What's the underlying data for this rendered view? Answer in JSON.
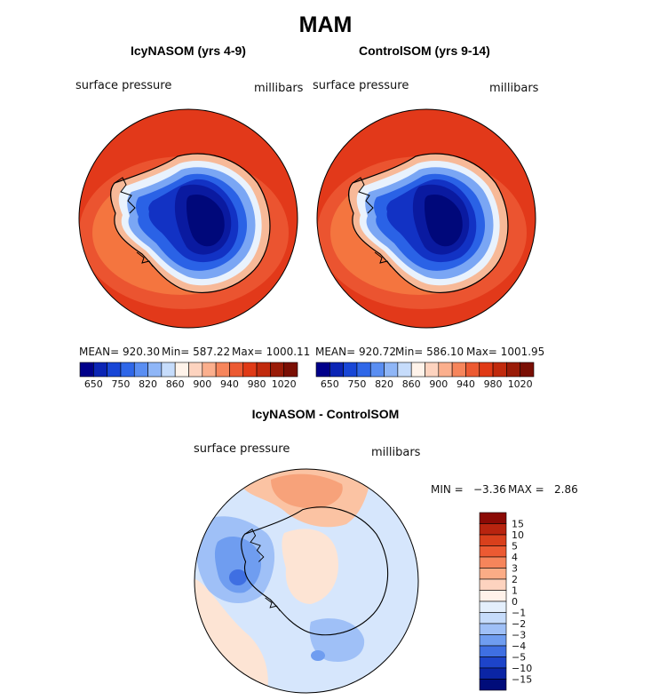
{
  "figure": {
    "season_title": "MAM",
    "panels": [
      {
        "title": "IcyNASOM (yrs 4-9)",
        "variable": "surface pressure",
        "units": "millibars",
        "mean_text": "MEAN= 920.30",
        "min_text": "Min= 587.22",
        "max_text": "Max= 1000.11"
      },
      {
        "title": "ControlSOM (yrs 9-14)",
        "variable": "surface pressure",
        "units": "millibars",
        "mean_text": "MEAN= 920.72",
        "min_text": "Min= 586.10",
        "max_text": "Max= 1001.95"
      }
    ],
    "difference": {
      "title": "IcyNASOM - ControlSOM",
      "variable": "surface pressure",
      "units": "millibars",
      "min_label": "MIN =",
      "min_value": "−3.36",
      "max_label": "MAX =",
      "max_value": "2.86"
    }
  },
  "chart_data": [
    {
      "type": "heatmap",
      "projection": "south-polar-stereographic",
      "title": "IcyNASOM (yrs 4-9)",
      "variable": "surface pressure",
      "units": "millibars",
      "mean": 920.3,
      "min": 587.22,
      "max": 1000.11,
      "colorbar_ticks": [
        "650",
        "750",
        "820",
        "860",
        "900",
        "940",
        "980",
        "1020"
      ],
      "colorbar_colors": [
        "#00008a",
        "#0b25b5",
        "#1846d6",
        "#2f67e8",
        "#5a8ef2",
        "#8fb6f7",
        "#c6dcfb",
        "#fff3ea",
        "#fdd3bf",
        "#fbaf8d",
        "#f6855b",
        "#ec5a32",
        "#e03a16",
        "#c12a0d",
        "#9a1c08",
        "#7a0f04"
      ]
    },
    {
      "type": "heatmap",
      "projection": "south-polar-stereographic",
      "title": "ControlSOM (yrs 9-14)",
      "variable": "surface pressure",
      "units": "millibars",
      "mean": 920.72,
      "min": 586.1,
      "max": 1001.95,
      "colorbar_ticks": [
        "650",
        "750",
        "820",
        "860",
        "900",
        "940",
        "980",
        "1020"
      ],
      "colorbar_colors": [
        "#00008a",
        "#0b25b5",
        "#1846d6",
        "#2f67e8",
        "#5a8ef2",
        "#8fb6f7",
        "#c6dcfb",
        "#fff3ea",
        "#fdd3bf",
        "#fbaf8d",
        "#f6855b",
        "#ec5a32",
        "#e03a16",
        "#c12a0d",
        "#9a1c08",
        "#7a0f04"
      ]
    },
    {
      "type": "heatmap",
      "projection": "south-polar-stereographic",
      "title": "IcyNASOM - ControlSOM",
      "variable": "surface pressure",
      "units": "millibars",
      "min": -3.36,
      "max": 2.86,
      "colorbar_ticks": [
        "15",
        "10",
        "5",
        "4",
        "3",
        "2",
        "1",
        "0",
        "−1",
        "−2",
        "−3",
        "−4",
        "−5",
        "−10",
        "−15"
      ],
      "colorbar_colors": [
        "#8b0a05",
        "#b8240f",
        "#d9401c",
        "#ec5a32",
        "#f6855b",
        "#fbac86",
        "#fdd3bf",
        "#fff2ea",
        "#e4effc",
        "#c6dcfb",
        "#9fc0f7",
        "#6f9df0",
        "#3f6fe2",
        "#1d44c9",
        "#0b25a5",
        "#000c7a"
      ]
    }
  ]
}
